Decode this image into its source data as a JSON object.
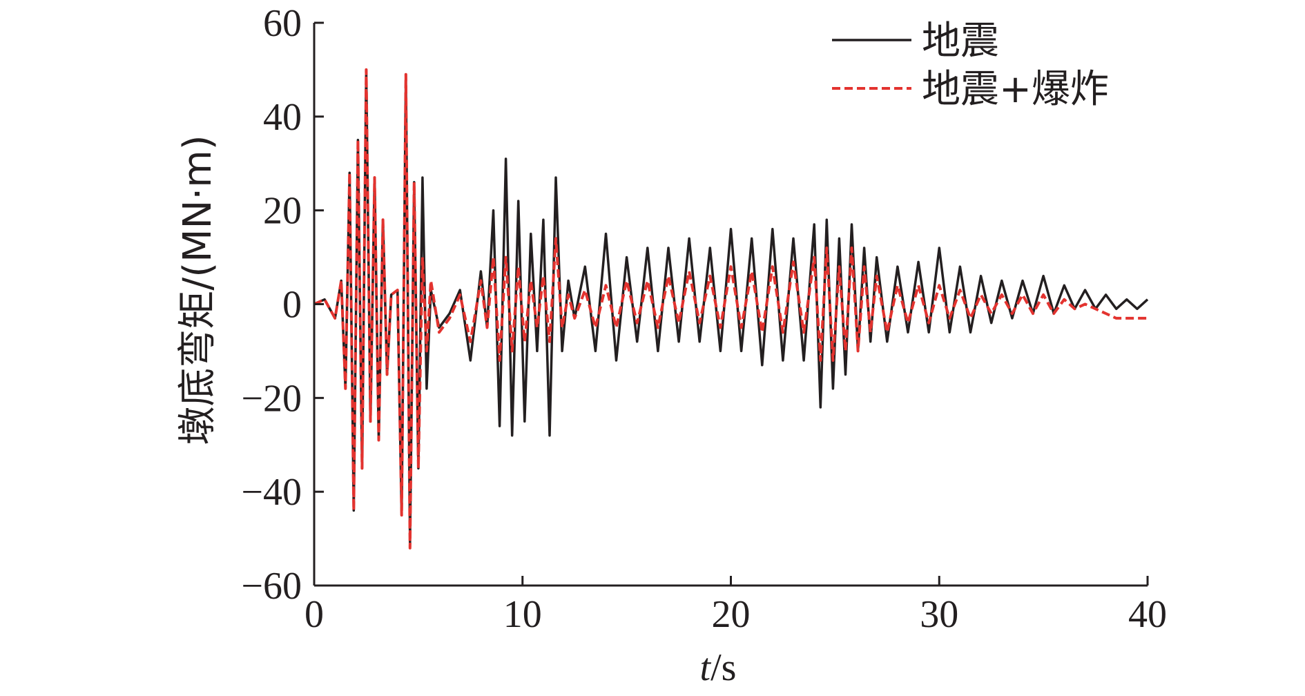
{
  "chart_data": {
    "type": "line",
    "title": "",
    "xlabel_italic": "t",
    "xlabel_unit": "/s",
    "ylabel": "墩底弯矩/(MN·m)",
    "xlim": [
      0,
      40
    ],
    "ylim": [
      -60,
      60
    ],
    "xticks": [
      0,
      10,
      20,
      30,
      40
    ],
    "yticks": [
      -60,
      -40,
      -20,
      0,
      20,
      40,
      60
    ],
    "ytick_labels": [
      "−60",
      "−40",
      "−20",
      "0",
      "20",
      "40",
      "60"
    ],
    "grid": false,
    "legend_position": "top-right",
    "series": [
      {
        "name": "地震",
        "color": "#231f20",
        "style": "solid",
        "x": [
          0,
          0.5,
          1.0,
          1.3,
          1.5,
          1.7,
          1.9,
          2.1,
          2.3,
          2.5,
          2.7,
          2.9,
          3.1,
          3.3,
          3.5,
          3.7,
          4.0,
          4.2,
          4.4,
          4.6,
          4.8,
          5.0,
          5.2,
          5.4,
          5.6,
          6.0,
          6.5,
          7.0,
          7.5,
          8.0,
          8.3,
          8.6,
          8.9,
          9.2,
          9.5,
          9.8,
          10.1,
          10.4,
          10.7,
          11.0,
          11.3,
          11.6,
          11.9,
          12.2,
          12.5,
          13.0,
          13.5,
          14.0,
          14.5,
          15.0,
          15.5,
          16.0,
          16.5,
          17.0,
          17.5,
          18.0,
          18.5,
          19.0,
          19.5,
          20.0,
          20.5,
          21.0,
          21.5,
          22.0,
          22.5,
          23.0,
          23.5,
          24.0,
          24.3,
          24.6,
          24.9,
          25.2,
          25.5,
          25.8,
          26.1,
          26.4,
          26.7,
          27.0,
          27.5,
          28.0,
          28.5,
          29.0,
          29.5,
          30.0,
          30.5,
          31.0,
          31.5,
          32.0,
          32.5,
          33.0,
          33.5,
          34.0,
          34.5,
          35.0,
          35.5,
          36.0,
          36.5,
          37.0,
          37.5,
          38.0,
          38.5,
          39.0,
          39.5,
          40.0
        ],
        "y": [
          0,
          1,
          -3,
          5,
          -18,
          28,
          -44,
          35,
          -35,
          50,
          -25,
          27,
          -29,
          18,
          -15,
          2,
          3,
          -45,
          49,
          -51,
          26,
          -35,
          27,
          -18,
          3,
          -5,
          -2,
          3,
          -12,
          7,
          -5,
          20,
          -26,
          31,
          -28,
          22,
          -25,
          15,
          -10,
          18,
          -28,
          27,
          -10,
          5,
          -3,
          8,
          -10,
          15,
          -12,
          10,
          -8,
          12,
          -10,
          12,
          -8,
          14,
          -8,
          12,
          -10,
          16,
          -10,
          14,
          -13,
          16,
          -12,
          14,
          -12,
          17,
          -22,
          18,
          -18,
          14,
          -15,
          17,
          -10,
          12,
          -8,
          10,
          -8,
          8,
          -6,
          9,
          -6,
          12,
          -6,
          8,
          -6,
          6,
          -4,
          5,
          -3,
          5,
          -2,
          6,
          -2,
          4,
          -1,
          3,
          -1,
          2,
          -1,
          1,
          -1,
          1
        ]
      },
      {
        "name": "地震+爆炸",
        "color": "#e3332f",
        "style": "dashed",
        "x": [
          0,
          0.5,
          1.0,
          1.3,
          1.5,
          1.7,
          1.9,
          2.1,
          2.3,
          2.5,
          2.7,
          2.9,
          3.1,
          3.3,
          3.5,
          3.7,
          4.0,
          4.2,
          4.4,
          4.6,
          4.8,
          5.0,
          5.2,
          5.4,
          5.6,
          6.0,
          6.5,
          7.0,
          7.5,
          8.0,
          8.3,
          8.6,
          8.9,
          9.2,
          9.5,
          9.8,
          10.1,
          10.4,
          10.7,
          11.0,
          11.3,
          11.6,
          11.9,
          12.2,
          12.5,
          13.0,
          13.5,
          14.0,
          14.5,
          15.0,
          15.5,
          16.0,
          16.5,
          17.0,
          17.5,
          18.0,
          18.5,
          19.0,
          19.5,
          20.0,
          20.5,
          21.0,
          21.5,
          22.0,
          22.5,
          23.0,
          23.5,
          24.0,
          24.3,
          24.6,
          24.9,
          25.2,
          25.5,
          25.8,
          26.1,
          26.4,
          26.7,
          27.0,
          27.5,
          28.0,
          28.5,
          29.0,
          29.5,
          30.0,
          30.5,
          31.0,
          31.5,
          32.0,
          32.5,
          33.0,
          33.5,
          34.0,
          34.5,
          35.0,
          35.5,
          36.0,
          36.5,
          37.0,
          37.5,
          38.0,
          38.5,
          39.0,
          39.5,
          40.0
        ],
        "y": [
          0,
          1,
          -3,
          5,
          -18,
          28,
          -44,
          35,
          -35,
          50,
          -25,
          27,
          -29,
          18,
          -15,
          2,
          3,
          -45,
          49,
          -52,
          26,
          -35,
          10,
          -10,
          5,
          -6,
          -3,
          2,
          -8,
          5,
          -5,
          10,
          -12,
          10,
          -10,
          8,
          -8,
          5,
          -5,
          6,
          -8,
          14,
          -5,
          2,
          -3,
          3,
          -5,
          4,
          -5,
          5,
          -4,
          5,
          -5,
          6,
          -4,
          7,
          -4,
          6,
          -5,
          8,
          -5,
          7,
          -6,
          8,
          -6,
          9,
          -6,
          10,
          -12,
          12,
          -12,
          8,
          -10,
          12,
          -10,
          8,
          -6,
          6,
          -6,
          4,
          -4,
          4,
          -4,
          4,
          -3,
          3,
          -3,
          2,
          -2,
          2,
          -2,
          2,
          -2,
          2,
          -2,
          1,
          -1,
          0,
          -1,
          -2,
          -3,
          -3,
          -3,
          -3
        ]
      }
    ]
  }
}
